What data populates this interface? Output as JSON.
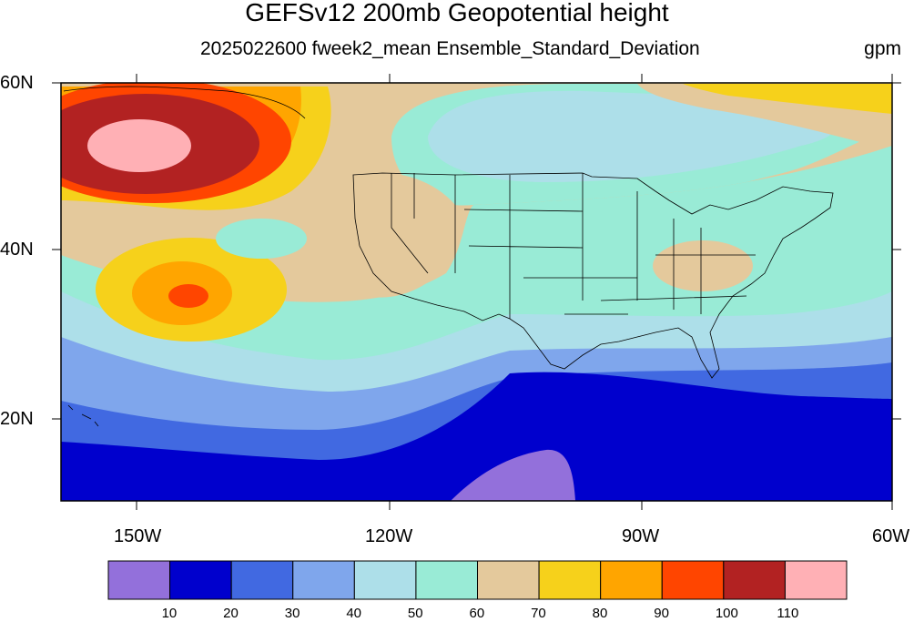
{
  "header": {
    "title": "GEFSv12 200mb Geopotential height",
    "subtitle": "2025022600 fweek2_mean Ensemble_Standard_Deviation",
    "units": "gpm"
  },
  "axes": {
    "lat_labels": [
      "60N",
      "40N",
      "20N"
    ],
    "lon_labels": [
      "150W",
      "120W",
      "90W",
      "60W"
    ]
  },
  "colorbar": {
    "colors": [
      "#9370DB",
      "#0000CD",
      "#4169E1",
      "#7FA6EC",
      "#ADDFE9",
      "#99EBD6",
      "#E4C99C",
      "#F6D11B",
      "#FFA500",
      "#FF4500",
      "#B22222",
      "#FFB0B5"
    ],
    "labels": [
      "10",
      "20",
      "30",
      "40",
      "50",
      "60",
      "70",
      "80",
      "90",
      "100",
      "110"
    ]
  }
}
